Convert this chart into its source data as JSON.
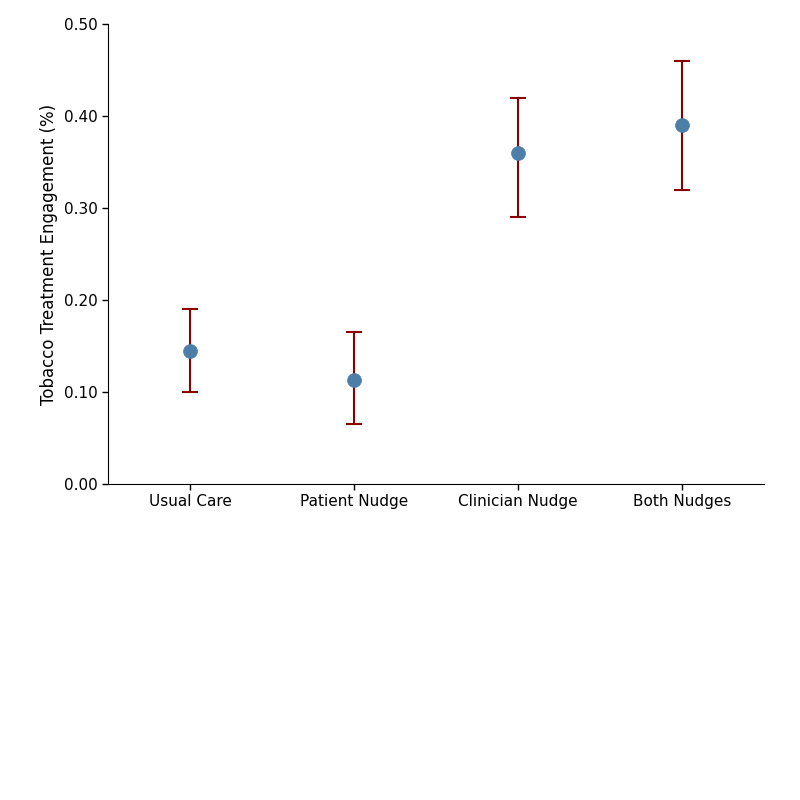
{
  "categories": [
    "Usual Care",
    "Patient Nudge",
    "Clinician Nudge",
    "Both Nudges"
  ],
  "centers": [
    0.145,
    0.113,
    0.36,
    0.39
  ],
  "ci_lower": [
    0.1,
    0.065,
    0.29,
    0.32
  ],
  "ci_upper": [
    0.19,
    0.165,
    0.42,
    0.46
  ],
  "point_color": "#4d7ea8",
  "error_color": "#8b0000",
  "ylabel": "Tobacco Treatment Engagement (%)",
  "ylim": [
    0.0,
    0.5
  ],
  "yticks": [
    0.0,
    0.1,
    0.2,
    0.3,
    0.4,
    0.5
  ],
  "ytick_labels": [
    "0.00",
    "0.10",
    "0.20",
    "0.30",
    "0.40",
    "0.50"
  ],
  "background_color": "#ffffff",
  "plot_bg_color": "#ffffff",
  "footer_color": "#3a7abf",
  "point_size": 10,
  "linewidth": 1.5,
  "x_positions": [
    0,
    1,
    2,
    3
  ],
  "tick_fontsize": 11,
  "label_fontsize": 12
}
